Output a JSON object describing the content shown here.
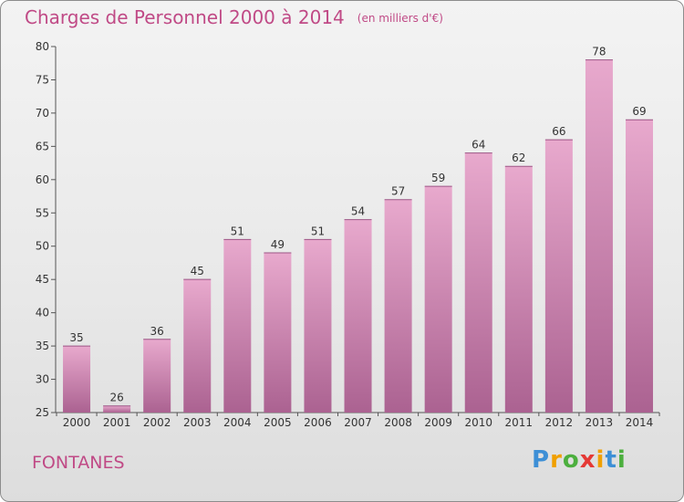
{
  "header": {
    "title": "Charges de Personnel 2000 à 2014",
    "subtitle": "(en milliers d'€)"
  },
  "footer": {
    "city": "FONTANES",
    "logo_letters": [
      "P",
      "r",
      "o",
      "x",
      "i",
      "t",
      "i"
    ],
    "logo_colors": [
      "#3d8fd6",
      "#f0a000",
      "#4caf3e",
      "#e53935",
      "#f0a000",
      "#3d8fd6",
      "#4caf3e"
    ]
  },
  "chart_data": {
    "type": "bar",
    "title": "Charges de Personnel 2000 à 2014",
    "subtitle": "(en milliers d'€)",
    "xlabel": "",
    "ylabel": "",
    "categories": [
      "2000",
      "2001",
      "2002",
      "2003",
      "2004",
      "2005",
      "2006",
      "2007",
      "2008",
      "2009",
      "2010",
      "2011",
      "2012",
      "2013",
      "2014"
    ],
    "values": [
      35,
      26,
      36,
      45,
      51,
      49,
      51,
      54,
      57,
      59,
      64,
      62,
      66,
      78,
      69
    ],
    "ylim": [
      25,
      80
    ],
    "yticks": [
      25,
      30,
      35,
      40,
      45,
      50,
      55,
      60,
      65,
      70,
      75,
      80
    ],
    "grid": false,
    "legend": "none",
    "bar_color_top": "#e8a9cd",
    "bar_color_bottom": "#ab6291"
  }
}
